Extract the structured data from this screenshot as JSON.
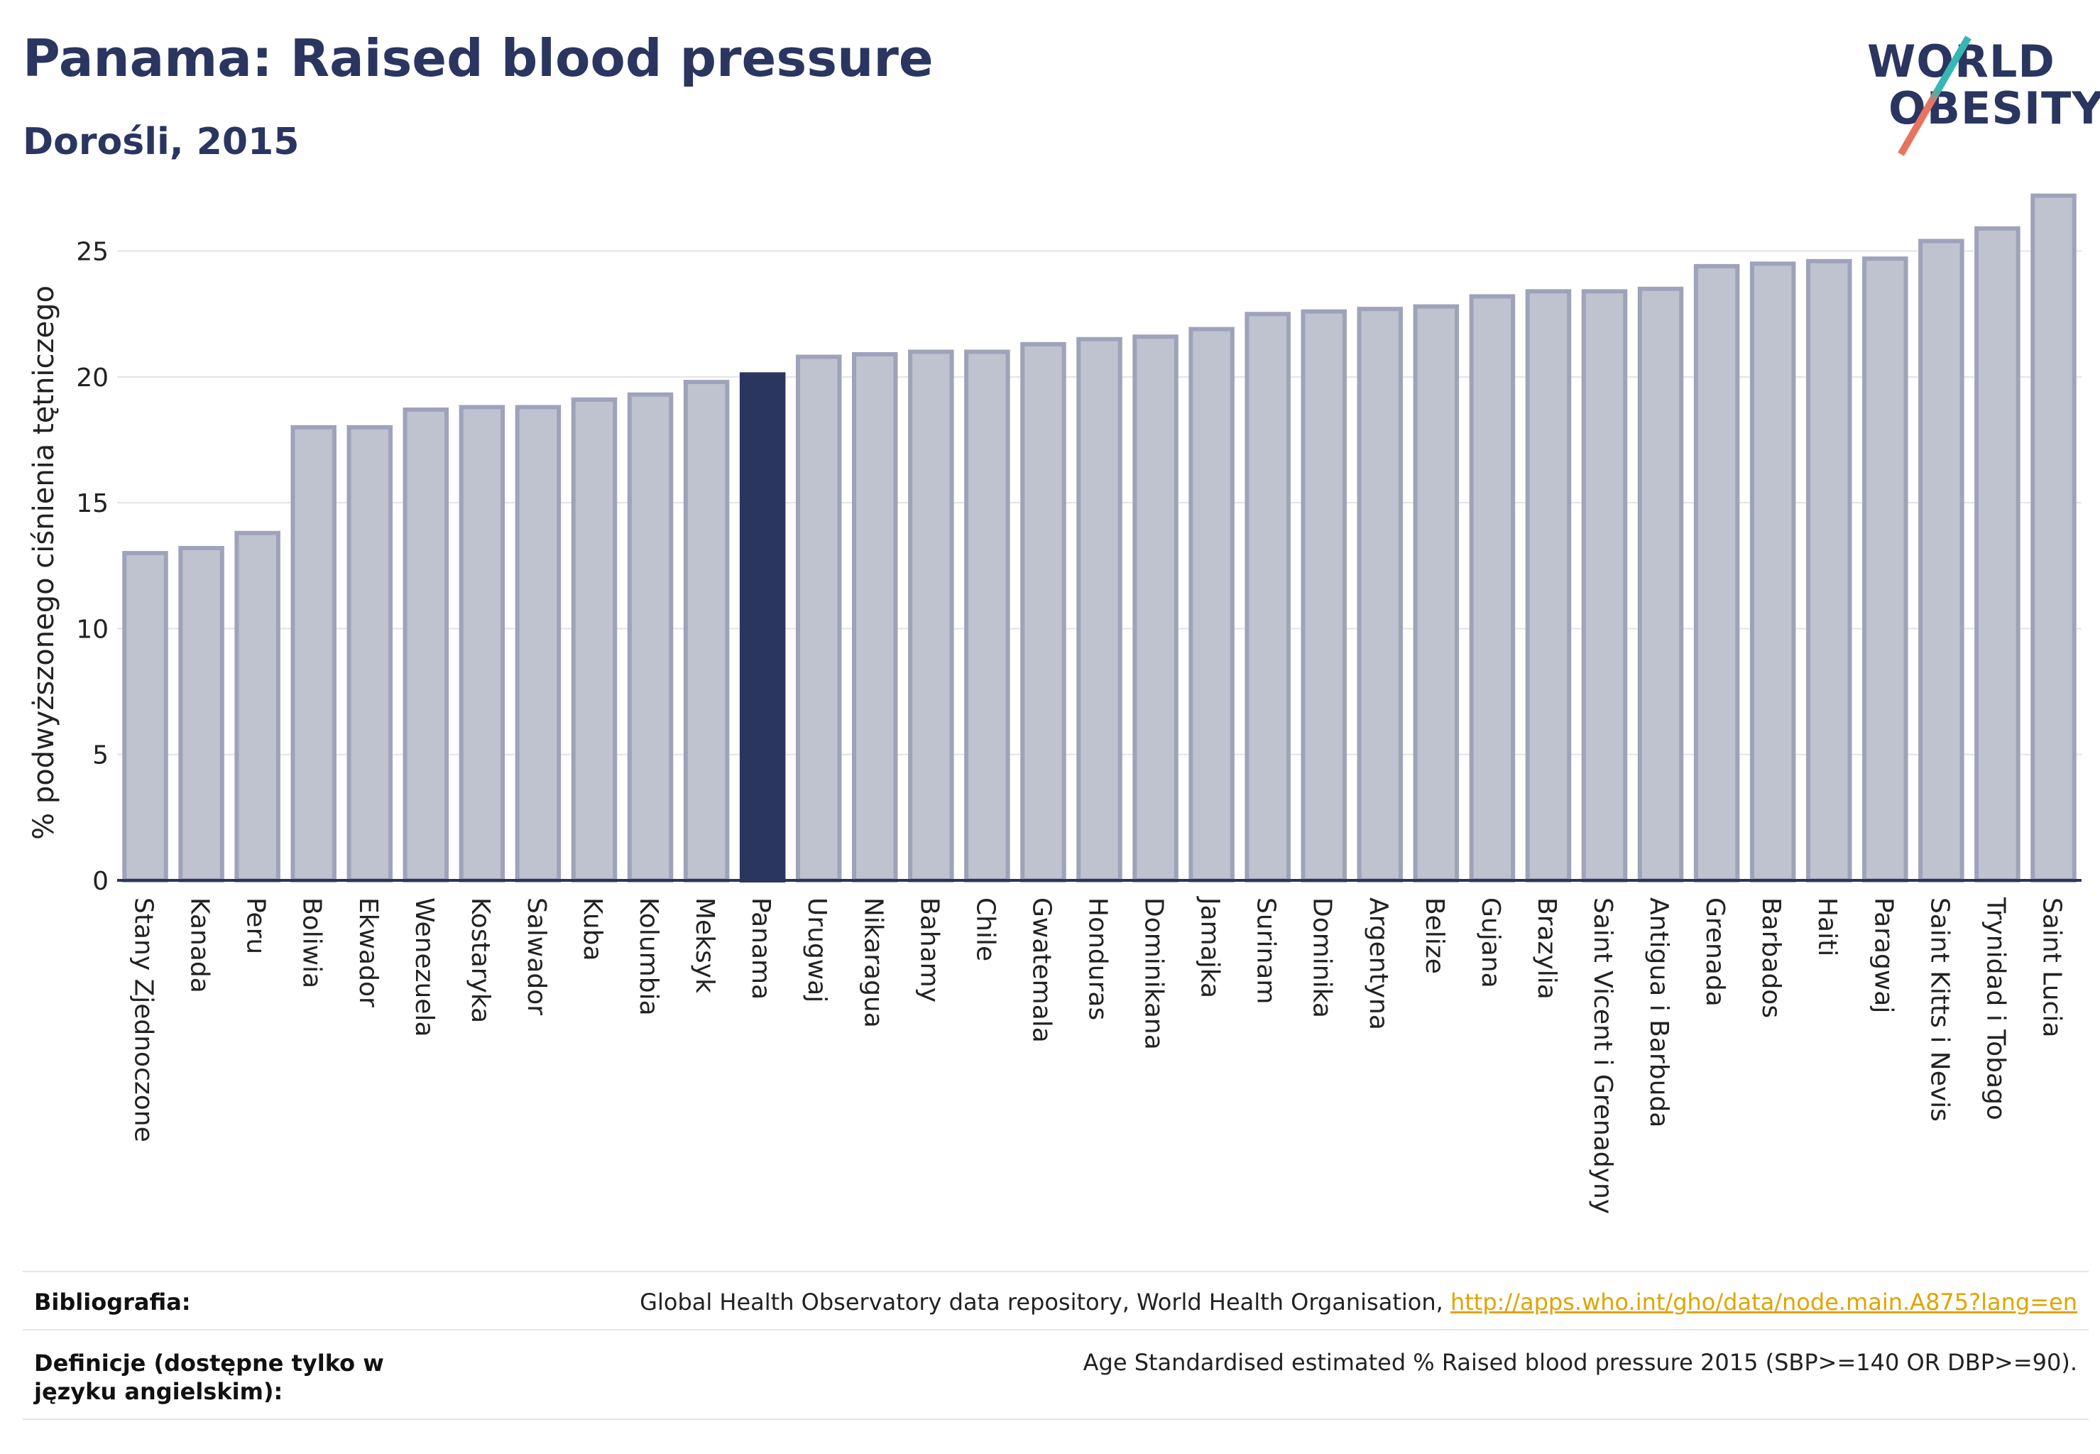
{
  "title": "Panama: Raised blood pressure",
  "subtitle": "Dorośli, 2015",
  "logo": {
    "line1": "WORLD",
    "line2": "OBESITY"
  },
  "chart_data": {
    "type": "bar",
    "ylabel": "% podwyższonego ciśnienia tętniczego",
    "xlabel": "",
    "ylim": [
      0,
      27.5
    ],
    "yticks": [
      0,
      5,
      10,
      15,
      20,
      25
    ],
    "grid": true,
    "highlight": "Panama",
    "colors": {
      "bar": "#bfc2cf",
      "bar_edge": "#9ea3ba",
      "highlight": "#2b365f",
      "axis": "#2b365f"
    },
    "categories": [
      "Stany Zjednoczone",
      "Kanada",
      "Peru",
      "Boliwia",
      "Ekwador",
      "Wenezuela",
      "Kostaryka",
      "Salwador",
      "Kuba",
      "Kolumbia",
      "Meksyk",
      "Panama",
      "Urugwaj",
      "Nikaragua",
      "Bahamy",
      "Chile",
      "Gwatemala",
      "Honduras",
      "Dominikana",
      "Jamajka",
      "Surinam",
      "Dominika",
      "Argentyna",
      "Belize",
      "Gujana",
      "Brazylia",
      "Saint Vicent i Grenadyny",
      "Antigua i Barbuda",
      "Grenada",
      "Barbados",
      "Haiti",
      "Paragwaj",
      "Saint Kitts i Nevis",
      "Trynidad i Tobago",
      "Saint Lucia"
    ],
    "values": [
      13.0,
      13.2,
      13.8,
      18.0,
      18.0,
      18.7,
      18.8,
      18.8,
      19.1,
      19.3,
      19.8,
      20.1,
      20.8,
      20.9,
      21.0,
      21.0,
      21.3,
      21.5,
      21.6,
      21.9,
      22.5,
      22.6,
      22.7,
      22.8,
      23.2,
      23.4,
      23.4,
      23.5,
      24.4,
      24.5,
      24.6,
      24.7,
      25.4,
      25.9,
      27.2
    ]
  },
  "references": {
    "bibliography_label": "Bibliografia:",
    "bibliography_text": "Global Health Observatory data repository, World Health Organisation, ",
    "bibliography_link": "http://apps.who.int/gho/data/node.main.A875?lang=en",
    "definitions_label": "Definicje (dostępne tylko w języku angielskim):",
    "definitions_text": "Age Standardised estimated % Raised blood pressure 2015 (SBP>=140 OR DBP>=90)."
  }
}
